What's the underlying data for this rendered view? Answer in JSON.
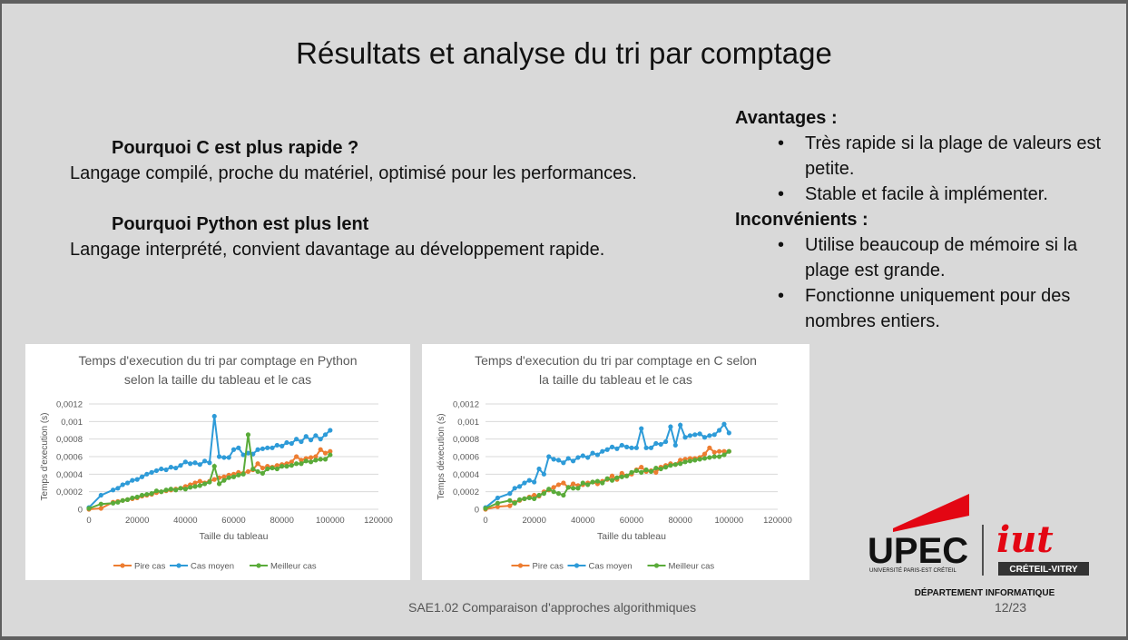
{
  "slide": {
    "title": "Résultats et analyse du  tri par comptage",
    "left": {
      "q1": "Pourquoi C est plus rapide ?",
      "p1": "Langage compilé, proche du matériel, optimisé pour les performances.",
      "q2": "Pourquoi Python est plus lent",
      "p2": "Langage interprété, convient davantage au développement rapide."
    },
    "right": {
      "adv_heading": "Avantages :",
      "adv_items": [
        "Très rapide si la plage de valeurs est petite.",
        "Stable et facile à implémenter."
      ],
      "inc_heading": "Inconvénients :",
      "inc_items": [
        "Utilise beaucoup de mémoire si la plage est grande.",
        "Fonctionne uniquement pour des nombres entiers."
      ]
    },
    "footer": "SAE1.02 Comparaison d'approches algorithmiques",
    "page": "12/23",
    "logo": {
      "upec": "UPEC",
      "upec_sub": "UNIVERSITÉ PARIS-EST CRÉTEIL",
      "iut": "iut",
      "iut_badge": "CRÉTEIL-VITRY",
      "dept": "DÉPARTEMENT INFORMATIQUE"
    }
  },
  "colors": {
    "pire": "#ed7d31",
    "moyen": "#2e9bd8",
    "meilleur": "#5aab3a"
  },
  "chart_data": [
    {
      "type": "line",
      "title": [
        "Temps d'execution du tri par comptage en Python",
        "selon la taille du tableau et le cas"
      ],
      "xlabel": "Taille du tableau",
      "ylabel": "Temps d'execution (s)",
      "xlim": [
        0,
        120000
      ],
      "ylim": [
        0,
        0.0012
      ],
      "xticks": [
        "0",
        "20000",
        "40000",
        "60000",
        "80000",
        "100000",
        "120000"
      ],
      "yticks": [
        "0",
        "0,0002",
        "0,0004",
        "0,0006",
        "0,0008",
        "0,001",
        "0,0012"
      ],
      "x": [
        0,
        5000,
        10000,
        12000,
        14000,
        16000,
        18000,
        20000,
        22000,
        24000,
        26000,
        28000,
        30000,
        32000,
        34000,
        36000,
        38000,
        40000,
        42000,
        44000,
        46000,
        48000,
        50000,
        52000,
        54000,
        56000,
        58000,
        60000,
        62000,
        64000,
        66000,
        68000,
        70000,
        72000,
        74000,
        76000,
        78000,
        80000,
        82000,
        84000,
        86000,
        88000,
        90000,
        92000,
        94000,
        96000,
        98000,
        100000
      ],
      "legend": "bottom",
      "series": [
        {
          "name": "Pire cas",
          "color_key": "pire",
          "values": [
            0,
            1e-05,
            8e-05,
            9e-05,
            0.0001,
            0.00011,
            0.00012,
            0.00013,
            0.00015,
            0.00016,
            0.00017,
            0.00019,
            0.0002,
            0.00021,
            0.00022,
            0.00023,
            0.00024,
            0.00026,
            0.00028,
            0.0003,
            0.00032,
            0.0003,
            0.00032,
            0.00034,
            0.00036,
            0.00037,
            0.00039,
            0.0004,
            0.00042,
            0.00041,
            0.00043,
            0.00045,
            0.00052,
            0.00047,
            0.00049,
            0.00048,
            0.0005,
            0.00051,
            0.00052,
            0.00054,
            0.0006,
            0.00056,
            0.00058,
            0.00059,
            0.0006,
            0.00068,
            0.00064,
            0.00066
          ]
        },
        {
          "name": "Cas moyen",
          "color_key": "moyen",
          "values": [
            2e-05,
            0.00016,
            0.00022,
            0.00024,
            0.00028,
            0.0003,
            0.00033,
            0.00034,
            0.00037,
            0.0004,
            0.00042,
            0.00044,
            0.00046,
            0.00045,
            0.00048,
            0.00047,
            0.0005,
            0.00054,
            0.00052,
            0.00053,
            0.00051,
            0.00055,
            0.00053,
            0.00106,
            0.0006,
            0.00059,
            0.00059,
            0.00068,
            0.0007,
            0.00062,
            0.00064,
            0.00063,
            0.00068,
            0.00069,
            0.0007,
            0.0007,
            0.00073,
            0.00072,
            0.00076,
            0.00075,
            0.0008,
            0.00077,
            0.00083,
            0.00079,
            0.00084,
            0.0008,
            0.00085,
            0.0009
          ]
        },
        {
          "name": "Meilleur cas",
          "color_key": "meilleur",
          "values": [
            1e-05,
            6e-05,
            7e-05,
            8e-05,
            0.0001,
            0.00011,
            0.00013,
            0.00014,
            0.00016,
            0.00017,
            0.00018,
            0.00021,
            0.0002,
            0.00022,
            0.00023,
            0.00022,
            0.00024,
            0.00023,
            0.00025,
            0.00026,
            0.00027,
            0.00029,
            0.00031,
            0.00049,
            0.00029,
            0.00033,
            0.00036,
            0.00037,
            0.00039,
            0.0004,
            0.00085,
            0.00046,
            0.00043,
            0.00041,
            0.00046,
            0.00047,
            0.00046,
            0.00049,
            0.00049,
            0.0005,
            0.00052,
            0.00052,
            0.00055,
            0.00054,
            0.00056,
            0.00057,
            0.00057,
            0.00062
          ]
        }
      ]
    },
    {
      "type": "line",
      "title": [
        "Temps d'execution du tri par comptage en C selon",
        "la taille du tableau et le cas"
      ],
      "xlabel": "Taille du tableau",
      "ylabel": "Temps déxecution (s)",
      "xlim": [
        0,
        120000
      ],
      "ylim": [
        0,
        0.0012
      ],
      "xticks": [
        "0",
        "20000",
        "40000",
        "60000",
        "80000",
        "100000",
        "120000"
      ],
      "yticks": [
        "0",
        "0,0002",
        "0,0004",
        "0,0006",
        "0,0008",
        "0,001",
        "0,0012"
      ],
      "x": [
        0,
        5000,
        10000,
        12000,
        14000,
        16000,
        18000,
        20000,
        22000,
        24000,
        26000,
        28000,
        30000,
        32000,
        34000,
        36000,
        38000,
        40000,
        42000,
        44000,
        46000,
        48000,
        50000,
        52000,
        54000,
        56000,
        58000,
        60000,
        62000,
        64000,
        66000,
        68000,
        70000,
        72000,
        74000,
        76000,
        78000,
        80000,
        82000,
        84000,
        86000,
        88000,
        90000,
        92000,
        94000,
        96000,
        98000,
        100000
      ],
      "legend": "bottom",
      "series": [
        {
          "name": "Pire cas",
          "color_key": "pire",
          "values": [
            0,
            3e-05,
            4e-05,
            8e-05,
            0.0001,
            0.00012,
            0.00014,
            0.00016,
            0.00015,
            0.0002,
            0.00022,
            0.00025,
            0.00028,
            0.0003,
            0.00025,
            0.00029,
            0.00027,
            0.00028,
            0.0003,
            0.00031,
            0.00029,
            0.00032,
            0.00034,
            0.00038,
            0.00034,
            0.00041,
            0.00038,
            0.0004,
            0.00045,
            0.00048,
            0.00043,
            0.00044,
            0.00042,
            0.00048,
            0.0005,
            0.00052,
            0.00051,
            0.00056,
            0.00057,
            0.00058,
            0.00058,
            0.00059,
            0.00063,
            0.0007,
            0.00065,
            0.00066,
            0.00066,
            0.00066
          ]
        },
        {
          "name": "Cas moyen",
          "color_key": "moyen",
          "values": [
            2e-05,
            0.00013,
            0.00018,
            0.00024,
            0.00026,
            0.0003,
            0.00033,
            0.00031,
            0.00046,
            0.0004,
            0.0006,
            0.00057,
            0.00056,
            0.00053,
            0.00058,
            0.00055,
            0.00059,
            0.00061,
            0.00059,
            0.00064,
            0.00062,
            0.00066,
            0.00068,
            0.00071,
            0.00069,
            0.00073,
            0.00071,
            0.0007,
            0.0007,
            0.00092,
            0.0007,
            0.0007,
            0.00075,
            0.00074,
            0.00077,
            0.00094,
            0.00073,
            0.00096,
            0.00082,
            0.00084,
            0.00085,
            0.00086,
            0.00082,
            0.00084,
            0.00085,
            0.0009,
            0.00097,
            0.00087
          ]
        },
        {
          "name": "Meilleur cas",
          "color_key": "meilleur",
          "values": [
            1e-05,
            7e-05,
            0.0001,
            7e-05,
            0.00011,
            0.00012,
            0.00013,
            0.00012,
            0.00016,
            0.00018,
            0.00023,
            0.0002,
            0.00018,
            0.00016,
            0.00025,
            0.00024,
            0.00024,
            0.0003,
            0.00028,
            0.00031,
            0.00032,
            0.0003,
            0.00035,
            0.00033,
            0.00036,
            0.00037,
            0.00038,
            0.00042,
            0.00044,
            0.00042,
            0.00045,
            0.00043,
            0.00047,
            0.00046,
            0.00048,
            0.0005,
            0.00051,
            0.00052,
            0.00054,
            0.00055,
            0.00056,
            0.00057,
            0.00058,
            0.00059,
            0.0006,
            0.0006,
            0.00062,
            0.00066
          ]
        }
      ]
    }
  ]
}
